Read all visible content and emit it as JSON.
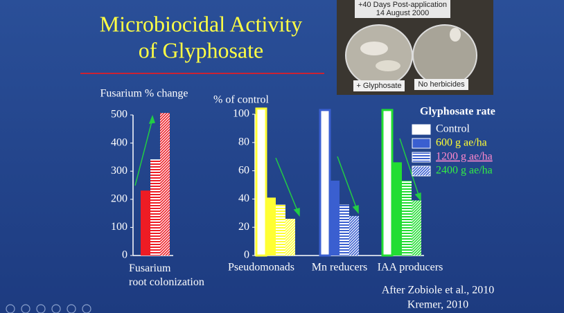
{
  "slide": {
    "title_lines": [
      "Microbiocidal Activity",
      "of Glyphosate"
    ],
    "source_lines": [
      "After Zobiole et al., 2010",
      "Kremer, 2010"
    ]
  },
  "photo": {
    "header_lines": [
      "+40 Days Post-application",
      "14 August 2000"
    ],
    "labels": [
      "+ Glyphosate",
      "No herbicides"
    ]
  },
  "chart_data": [
    {
      "type": "bar",
      "ylabel": "Fusarium % change",
      "categories": [
        "Fusarium\nroot colonization"
      ],
      "ylim": [
        0,
        500
      ],
      "yticks": [
        0,
        100,
        200,
        300,
        400,
        500
      ],
      "series": [
        {
          "color": "#ee1c24",
          "pattern": "solid",
          "values": [
            231
          ]
        },
        {
          "color": "#ee1c24",
          "pattern": "horizontal",
          "values": [
            342
          ]
        },
        {
          "color": "#ee1c24",
          "pattern": "diagonal",
          "values": [
            507
          ]
        }
      ]
    },
    {
      "type": "bar",
      "ylabel": "% of control",
      "categories": [
        "Pseudomonads",
        "Mn reducers",
        "IAA producers"
      ],
      "category_colors": [
        "#ffff33",
        "#3a5fd0",
        "#22dd33"
      ],
      "ylim": [
        0,
        100
      ],
      "yticks": [
        0,
        20,
        40,
        60,
        80,
        100
      ],
      "legend_title": "Glyphosate rate",
      "legend": "top-right",
      "series": [
        {
          "name": "Control",
          "pattern": "outline",
          "label_color": "#ffffff",
          "values": [
            104,
            103,
            103
          ]
        },
        {
          "name": "600 g ae/ha",
          "pattern": "solid",
          "label_color": "#ffff33",
          "values": [
            41,
            53,
            66
          ]
        },
        {
          "name": "1200 g ae/ha",
          "pattern": "horizontal",
          "label_color": "#ff88cc",
          "values": [
            36,
            36,
            53
          ]
        },
        {
          "name": "2400 g ae/ha",
          "pattern": "diagonal",
          "label_color": "#33ee44",
          "values": [
            26,
            28,
            39
          ]
        }
      ]
    }
  ]
}
